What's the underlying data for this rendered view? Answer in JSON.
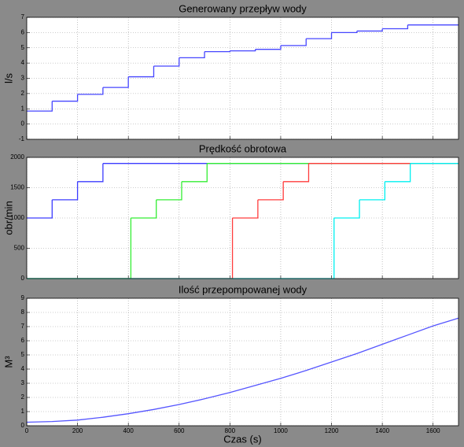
{
  "chart_data": [
    {
      "type": "line",
      "step": true,
      "title": "Generowany przepływ wody",
      "ylabel": "l/s",
      "x": [
        0,
        100,
        200,
        300,
        400,
        500,
        600,
        700,
        800,
        900,
        1000,
        1100,
        1200,
        1300,
        1400,
        1500
      ],
      "series": [
        {
          "color": "#4646ff",
          "values": [
            0.85,
            1.5,
            1.95,
            2.4,
            3.1,
            3.8,
            4.35,
            4.75,
            4.8,
            4.9,
            5.15,
            5.6,
            6.0,
            6.1,
            6.25,
            6.5
          ]
        }
      ],
      "xlim": [
        0,
        1700
      ],
      "xticks": [
        0,
        200,
        400,
        600,
        800,
        1000,
        1200,
        1400,
        1600
      ],
      "show_xtick_labels": false,
      "ylim": [
        -1,
        7
      ],
      "yticks": [
        -1,
        0,
        1,
        2,
        3,
        4,
        5,
        6,
        7
      ],
      "grid": true
    },
    {
      "type": "line",
      "step": true,
      "title": "Prędkość obrotowa",
      "ylabel": "obr/min",
      "series": [
        {
          "color": "#3c3cff",
          "x": [
            0,
            100,
            200,
            300
          ],
          "values": [
            1000,
            1300,
            1600,
            1900
          ]
        },
        {
          "color": "#33ee33",
          "x": [
            0,
            410,
            510,
            610,
            710
          ],
          "values": [
            0,
            1000,
            1300,
            1600,
            1900
          ]
        },
        {
          "color": "#ff3c3c",
          "x": [
            0,
            810,
            910,
            1010,
            1110
          ],
          "values": [
            0,
            1000,
            1300,
            1600,
            1900
          ]
        },
        {
          "color": "#00f0f0",
          "x": [
            0,
            1210,
            1310,
            1410,
            1510
          ],
          "values": [
            0,
            1000,
            1300,
            1600,
            1900
          ]
        }
      ],
      "xlim": [
        0,
        1700
      ],
      "xticks": [
        0,
        200,
        400,
        600,
        800,
        1000,
        1200,
        1400,
        1600
      ],
      "show_xtick_labels": false,
      "ylim": [
        0,
        2000
      ],
      "yticks": [
        0,
        500,
        1000,
        1500,
        2000
      ],
      "grid": true
    },
    {
      "type": "line",
      "step": false,
      "title": "Ilość przepompowanej  wody",
      "ylabel": "M³",
      "xlabel": "Czas (s)",
      "x": [
        0,
        100,
        200,
        300,
        400,
        500,
        600,
        700,
        800,
        900,
        1000,
        1100,
        1200,
        1300,
        1400,
        1500,
        1600,
        1700
      ],
      "series": [
        {
          "color": "#5555ff",
          "values": [
            0.25,
            0.3,
            0.4,
            0.6,
            0.85,
            1.15,
            1.5,
            1.9,
            2.35,
            2.85,
            3.35,
            3.9,
            4.5,
            5.1,
            5.75,
            6.4,
            7.05,
            7.6
          ]
        }
      ],
      "xlim": [
        0,
        1700
      ],
      "xticks": [
        0,
        200,
        400,
        600,
        800,
        1000,
        1200,
        1400,
        1600
      ],
      "show_xtick_labels": true,
      "ylim": [
        0,
        9
      ],
      "yticks": [
        0,
        1,
        2,
        3,
        4,
        5,
        6,
        7,
        8,
        9
      ],
      "grid": true
    }
  ]
}
